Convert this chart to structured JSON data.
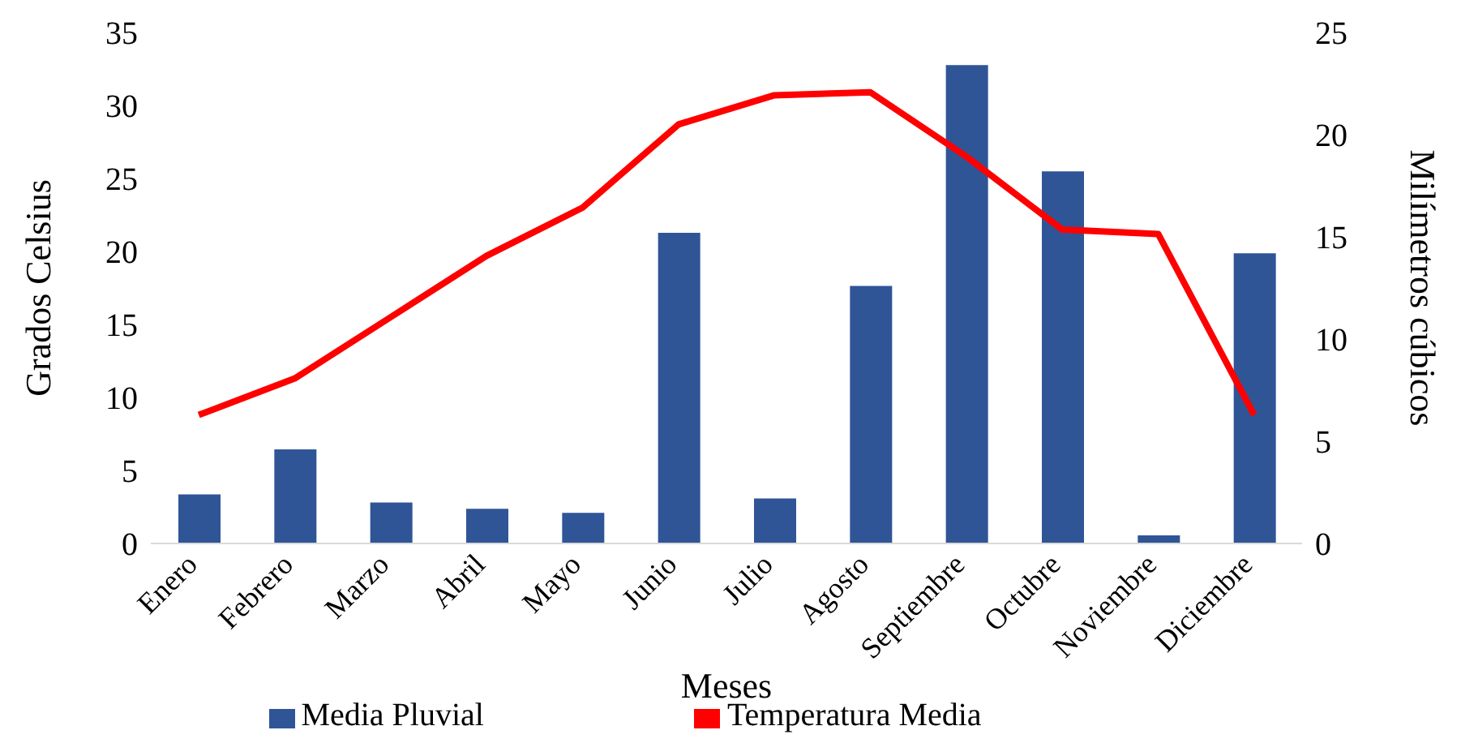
{
  "chart_data": {
    "type": "bar",
    "xlabel": "Meses",
    "ylabel": "Grados Celsius",
    "y2label": "Milímetros cúbicos",
    "categories": [
      "Enero",
      "Febrero",
      "Marzo",
      "Abril",
      "Mayo",
      "Junio",
      "Julio",
      "Agosto",
      "Septiembre",
      "Octubre",
      "Noviembre",
      "Diciembre"
    ],
    "series": [
      {
        "name": "Media Pluvial",
        "axis": "y2",
        "color": "#2f5597",
        "values": [
          2.4,
          4.6,
          2.0,
          1.7,
          1.5,
          15.2,
          2.2,
          12.6,
          23.4,
          18.2,
          0.4,
          14.2
        ]
      },
      {
        "name": "Temperatura Media",
        "type": "line",
        "axis": "y",
        "color": "#ff0000",
        "values": [
          8.8,
          11.3,
          15.5,
          19.7,
          23.0,
          28.7,
          30.7,
          30.9,
          26.5,
          21.5,
          21.2,
          8.8
        ]
      }
    ],
    "ylim": [
      0,
      35
    ],
    "yticks": [
      0,
      5,
      10,
      15,
      20,
      25,
      30,
      35
    ],
    "y2lim": [
      0,
      25
    ],
    "y2ticks": [
      0,
      5,
      10,
      15,
      20,
      25
    ],
    "legend": "bottom",
    "marker": "none",
    "line_style": "solid"
  }
}
